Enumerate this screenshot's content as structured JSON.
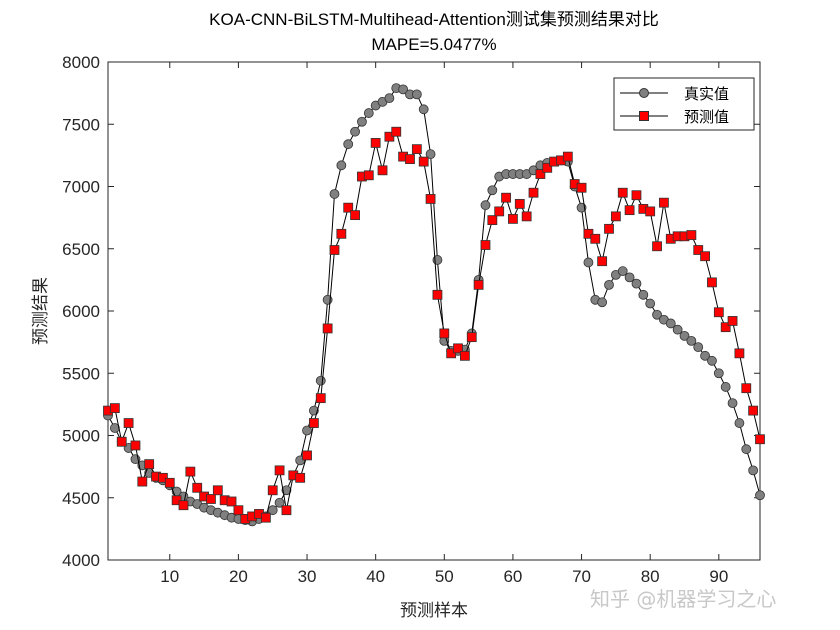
{
  "chart_data": {
    "type": "line",
    "title": "KOA-CNN-BiLSTM-Multihead-Attention测试集预测结果对比",
    "subtitle": "MAPE=5.0477%",
    "xlabel": "预测样本",
    "ylabel": "预测结果",
    "xlim": [
      1,
      96
    ],
    "ylim": [
      4000,
      8000
    ],
    "xticks": [
      10,
      20,
      30,
      40,
      50,
      60,
      70,
      80,
      90
    ],
    "yticks": [
      4000,
      4500,
      5000,
      5500,
      6000,
      6500,
      7000,
      7500,
      8000
    ],
    "grid": false,
    "legend_position": "top-right",
    "series": [
      {
        "name": "真实值",
        "marker": "circle",
        "color": "#808080",
        "values": [
          5160,
          5060,
          4950,
          4900,
          4810,
          4760,
          4700,
          4660,
          4640,
          4600,
          4550,
          4510,
          4470,
          4450,
          4420,
          4400,
          4380,
          4360,
          4340,
          4330,
          4320,
          4310,
          4330,
          4350,
          4400,
          4460,
          4560,
          4680,
          4800,
          5040,
          5200,
          5440,
          6090,
          6940,
          7170,
          7340,
          7440,
          7520,
          7590,
          7650,
          7680,
          7710,
          7790,
          7780,
          7740,
          7740,
          7620,
          7260,
          6410,
          5760,
          5680,
          5680,
          5690,
          5820,
          6250,
          6850,
          6970,
          7080,
          7100,
          7100,
          7100,
          7100,
          7130,
          7170,
          7190,
          7200,
          7210,
          7200,
          7000,
          6830,
          6390,
          6090,
          6070,
          6210,
          6290,
          6320,
          6270,
          6220,
          6130,
          6060,
          5970,
          5930,
          5900,
          5850,
          5800,
          5760,
          5710,
          5640,
          5600,
          5500,
          5390,
          5260,
          5100,
          4890,
          4720,
          4520
        ]
      },
      {
        "name": "预测值",
        "marker": "square",
        "color": "#ff0000",
        "values": [
          5200,
          5220,
          4950,
          5100,
          4920,
          4630,
          4770,
          4670,
          4660,
          4620,
          4480,
          4440,
          4710,
          4580,
          4510,
          4490,
          4560,
          4480,
          4470,
          4400,
          4330,
          4350,
          4370,
          4340,
          4560,
          4720,
          4400,
          4680,
          4660,
          4840,
          5100,
          5300,
          5860,
          6490,
          6620,
          6830,
          6770,
          7080,
          7090,
          7350,
          7130,
          7400,
          7440,
          7240,
          7220,
          7300,
          7200,
          6900,
          6130,
          5820,
          5660,
          5700,
          5640,
          5790,
          6210,
          6530,
          6730,
          6800,
          6910,
          6740,
          6860,
          6760,
          6950,
          7100,
          7150,
          7200,
          7210,
          7240,
          7020,
          6990,
          6620,
          6580,
          6400,
          6660,
          6760,
          6950,
          6810,
          6930,
          6820,
          6800,
          6520,
          6870,
          6580,
          6600,
          6600,
          6610,
          6490,
          6440,
          6230,
          5990,
          5870,
          5920,
          5660,
          5380,
          5200,
          4970
        ]
      }
    ]
  },
  "watermark": "知乎 @机器学习之心"
}
